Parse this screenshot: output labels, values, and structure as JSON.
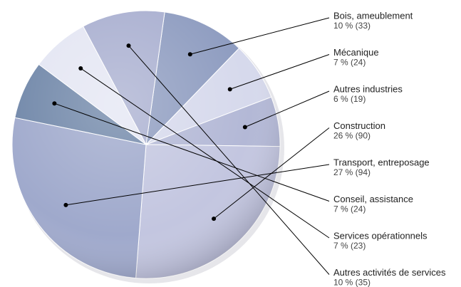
{
  "chart_data": {
    "type": "pie",
    "categories": [
      "Bois, ameublement",
      "Mécanique",
      "Autres industries",
      "Construction",
      "Transport, entreposage",
      "Conseil, assistance",
      "Services opérationnels",
      "Autres activités de services"
    ],
    "values": [
      10,
      7,
      6,
      26,
      27,
      7,
      7,
      10
    ],
    "value_labels": [
      "10 % (33)",
      "7 % (24)",
      "6 % (19)",
      "26 % (90)",
      "27 % (94)",
      "7 % (24)",
      "7 % (23)",
      "10 % (35)"
    ],
    "colors": [
      "#8e9cc0",
      "#d6d9ec",
      "#b3b8d6",
      "#c3c6e0",
      "#9fa9cc",
      "#6f86a8",
      "#e4e6f3",
      "#a9afd0"
    ]
  }
}
